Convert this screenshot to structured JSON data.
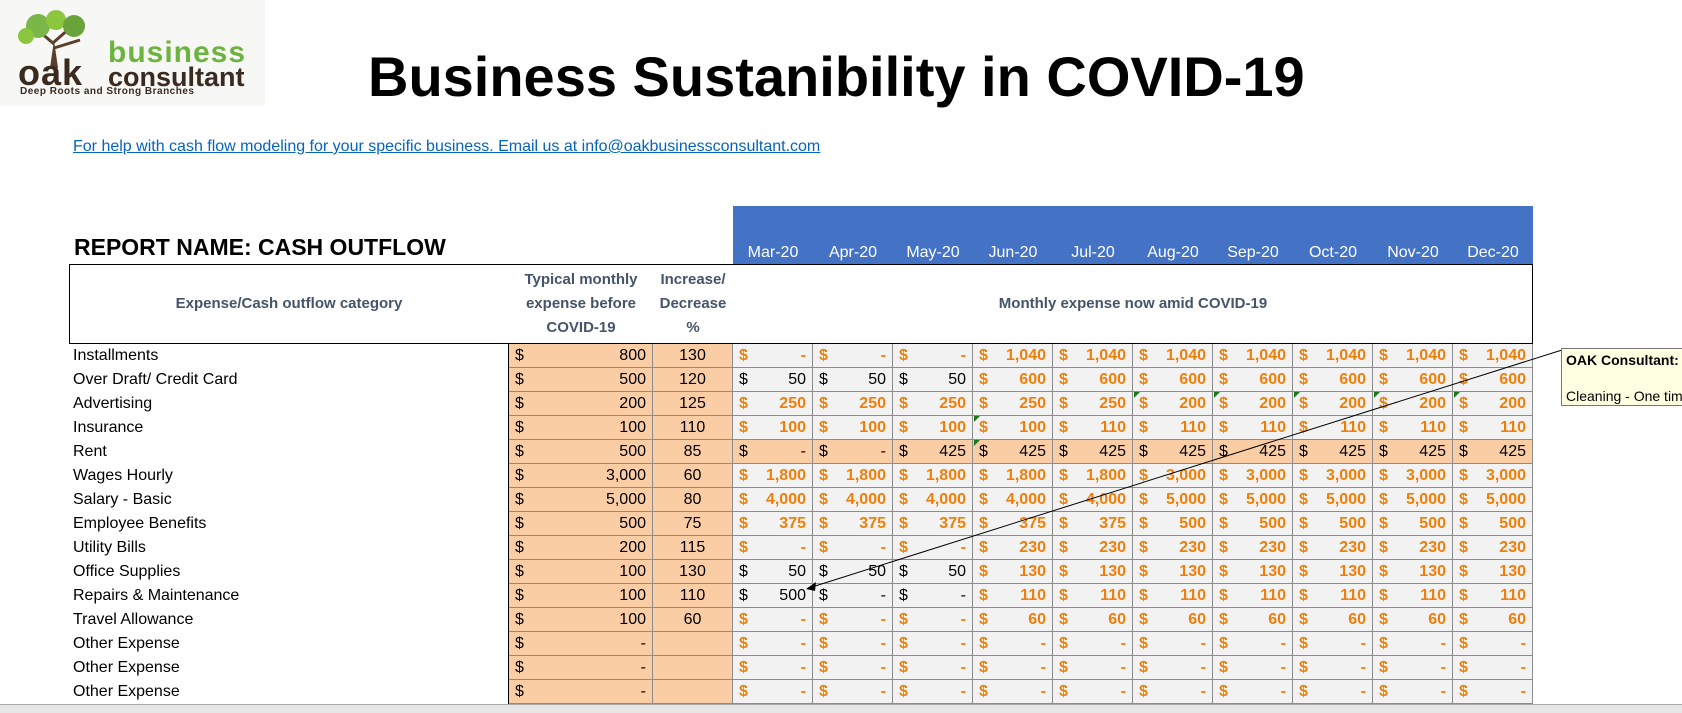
{
  "logo": {
    "line1": "business",
    "line2": "oak",
    "line3": "consultant",
    "tagline": "Deep Roots and Strong Branches",
    "icon": "oak-tree-icon"
  },
  "title": "Business Sustanibility in  COVID-19",
  "help_link": "For help with cash flow modeling for your specific business. Email us at info@oakbusinessconsultant.com ",
  "report_name": "REPORT NAME: CASH OUTFLOW",
  "months": [
    "Mar-20",
    "Apr-20",
    "May-20",
    "Jun-20",
    "Jul-20",
    "Aug-20",
    "Sep-20",
    "Oct-20",
    "Nov-20",
    "Dec-20"
  ],
  "headers": {
    "category": "Expense/Cash outflow category",
    "typical": [
      "Typical monthly",
      "expense before",
      "COVID-19"
    ],
    "change": [
      "Increase/",
      "Decrease",
      "%"
    ],
    "monthly": "Monthly expense now amid COVID-19"
  },
  "currency": "$",
  "rows": [
    {
      "name": "Installments",
      "typical": "800",
      "pct": "130",
      "m": [
        "-",
        "-",
        "-",
        "1,040",
        "1,040",
        "1,040",
        "1,040",
        "1,040",
        "1,040",
        "1,040"
      ]
    },
    {
      "name": "Over Draft/ Credit Card",
      "typical": "500",
      "pct": "120",
      "m": [
        "50",
        "50",
        "50",
        "600",
        "600",
        "600",
        "600",
        "600",
        "600",
        "600"
      ]
    },
    {
      "name": "Advertising",
      "typical": "200",
      "pct": "125",
      "m": [
        "250",
        "250",
        "250",
        "250",
        "250",
        "200",
        "200",
        "200",
        "200",
        "200"
      ]
    },
    {
      "name": "Insurance",
      "typical": "100",
      "pct": "110",
      "m": [
        "100",
        "100",
        "100",
        "100",
        "110",
        "110",
        "110",
        "110",
        "110",
        "110"
      ]
    },
    {
      "name": "Rent",
      "typical": "500",
      "pct": "85",
      "m": [
        "-",
        "-",
        "425",
        "425",
        "425",
        "425",
        "425",
        "425",
        "425",
        "425"
      ]
    },
    {
      "name": "Wages Hourly",
      "typical": "3,000",
      "pct": "60",
      "m": [
        "1,800",
        "1,800",
        "1,800",
        "1,800",
        "1,800",
        "3,000",
        "3,000",
        "3,000",
        "3,000",
        "3,000"
      ]
    },
    {
      "name": "Salary - Basic",
      "typical": "5,000",
      "pct": "80",
      "m": [
        "4,000",
        "4,000",
        "4,000",
        "4,000",
        "4,000",
        "5,000",
        "5,000",
        "5,000",
        "5,000",
        "5,000"
      ]
    },
    {
      "name": "Employee Benefits",
      "typical": "500",
      "pct": "75",
      "m": [
        "375",
        "375",
        "375",
        "375",
        "375",
        "500",
        "500",
        "500",
        "500",
        "500"
      ]
    },
    {
      "name": "Utility Bills",
      "typical": "200",
      "pct": "115",
      "m": [
        "-",
        "-",
        "-",
        "230",
        "230",
        "230",
        "230",
        "230",
        "230",
        "230"
      ]
    },
    {
      "name": "Office Supplies",
      "typical": "100",
      "pct": "130",
      "m": [
        "50",
        "50",
        "50",
        "130",
        "130",
        "130",
        "130",
        "130",
        "130",
        "130"
      ]
    },
    {
      "name": "Repairs & Maintenance",
      "typical": "100",
      "pct": "110",
      "m": [
        "500",
        "-",
        "-",
        "110",
        "110",
        "110",
        "110",
        "110",
        "110",
        "110"
      ]
    },
    {
      "name": "Travel Allowance",
      "typical": "100",
      "pct": "60",
      "m": [
        "-",
        "-",
        "-",
        "60",
        "60",
        "60",
        "60",
        "60",
        "60",
        "60"
      ]
    },
    {
      "name": "Other Expense",
      "typical": "-",
      "pct": "",
      "m": [
        "-",
        "-",
        "-",
        "-",
        "-",
        "-",
        "-",
        "-",
        "-",
        "-"
      ]
    },
    {
      "name": "Other Expense",
      "typical": "-",
      "pct": "",
      "m": [
        "-",
        "-",
        "-",
        "-",
        "-",
        "-",
        "-",
        "-",
        "-",
        "-"
      ]
    },
    {
      "name": "Other Expense",
      "typical": "-",
      "pct": "",
      "m": [
        "-",
        "-",
        "-",
        "-",
        "-",
        "-",
        "-",
        "-",
        "-",
        "-"
      ]
    }
  ],
  "comment": {
    "author": "OAK Consultant:",
    "text": "Cleaning - One tim"
  },
  "colors": {
    "month_band": "#4472c4",
    "peach": "#fbcda5",
    "orange_value": "#f07f09",
    "link": "#0563c1"
  }
}
